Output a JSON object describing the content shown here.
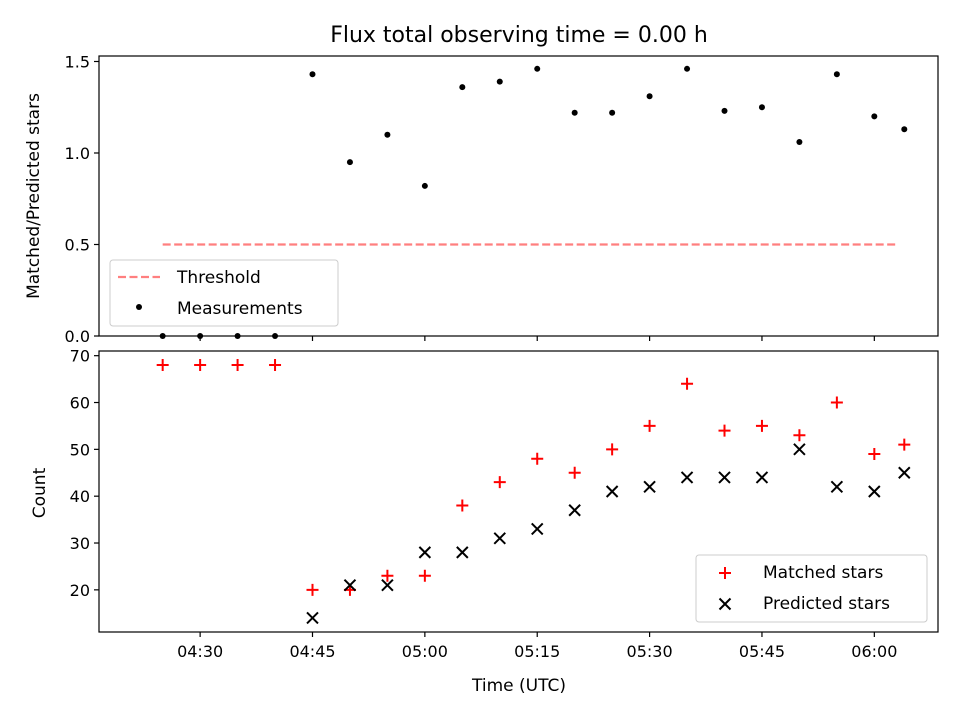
{
  "figure": {
    "title": "Flux total observing time = 0.00 h"
  },
  "chart_data": [
    {
      "type": "scatter",
      "ylabel": "Matched/Predicted stars",
      "ylim": [
        0,
        1.53
      ],
      "yticks": [
        0.0,
        0.5,
        1.0,
        1.5
      ],
      "ytick_labels": [
        "0.0",
        "0.5",
        "1.0",
        "1.5"
      ],
      "xlim": [
        "04:16:30",
        "06:08:30"
      ],
      "xticks": [
        "04:30",
        "04:45",
        "05:00",
        "05:15",
        "05:30",
        "05:45",
        "06:00"
      ],
      "show_xtick_labels": false,
      "threshold": {
        "name": "Threshold",
        "x": [
          "04:25",
          "06:03"
        ],
        "y": 0.5,
        "color": "#ff7f7f"
      },
      "series": [
        {
          "name": "Measurements",
          "color": "#000000",
          "marker": "dot",
          "x": [
            "04:25",
            "04:30",
            "04:35",
            "04:40",
            "04:45",
            "04:50",
            "04:55",
            "05:00",
            "05:05",
            "05:10",
            "05:15",
            "05:20",
            "05:25",
            "05:30",
            "05:35",
            "05:40",
            "05:45",
            "05:50",
            "05:55",
            "06:00",
            "06:04"
          ],
          "y": [
            0.0,
            0.0,
            0.0,
            0.0,
            1.43,
            0.95,
            1.1,
            0.82,
            1.36,
            1.39,
            1.46,
            1.22,
            1.22,
            1.31,
            1.46,
            1.23,
            1.25,
            1.06,
            1.43,
            1.2,
            1.13
          ]
        }
      ],
      "legend": {
        "location": "lower-left",
        "entries": [
          "Threshold",
          "Measurements"
        ]
      }
    },
    {
      "type": "scatter",
      "xlabel": "Time (UTC)",
      "ylabel": "Count",
      "ylim": [
        11,
        71
      ],
      "yticks": [
        20,
        30,
        40,
        50,
        60,
        70
      ],
      "ytick_labels": [
        "20",
        "30",
        "40",
        "50",
        "60",
        "70"
      ],
      "xlim": [
        "04:16:30",
        "06:08:30"
      ],
      "xticks": [
        "04:30",
        "04:45",
        "05:00",
        "05:15",
        "05:30",
        "05:45",
        "06:00"
      ],
      "xtick_labels": [
        "04:30",
        "04:45",
        "05:00",
        "05:15",
        "05:30",
        "05:45",
        "06:00"
      ],
      "series": [
        {
          "name": "Matched stars",
          "color": "#ff0000",
          "marker": "plus",
          "x": [
            "04:25",
            "04:30",
            "04:35",
            "04:40",
            "04:45",
            "04:50",
            "04:55",
            "05:00",
            "05:05",
            "05:10",
            "05:15",
            "05:20",
            "05:25",
            "05:30",
            "05:35",
            "05:40",
            "05:45",
            "05:50",
            "05:55",
            "06:00",
            "06:04"
          ],
          "y": [
            68,
            68,
            68,
            68,
            20,
            20,
            23,
            23,
            38,
            43,
            48,
            45,
            50,
            55,
            64,
            54,
            55,
            53,
            60,
            49,
            51
          ]
        },
        {
          "name": "Predicted stars",
          "color": "#000000",
          "marker": "x",
          "x": [
            "04:45",
            "04:50",
            "04:55",
            "05:00",
            "05:05",
            "05:10",
            "05:15",
            "05:20",
            "05:25",
            "05:30",
            "05:35",
            "05:40",
            "05:45",
            "05:50",
            "05:55",
            "06:00",
            "06:04"
          ],
          "y": [
            14,
            21,
            21,
            28,
            28,
            31,
            33,
            37,
            41,
            42,
            44,
            44,
            44,
            50,
            42,
            41,
            45
          ]
        }
      ],
      "legend": {
        "location": "lower-right",
        "entries": [
          "Matched stars",
          "Predicted stars"
        ]
      }
    }
  ]
}
